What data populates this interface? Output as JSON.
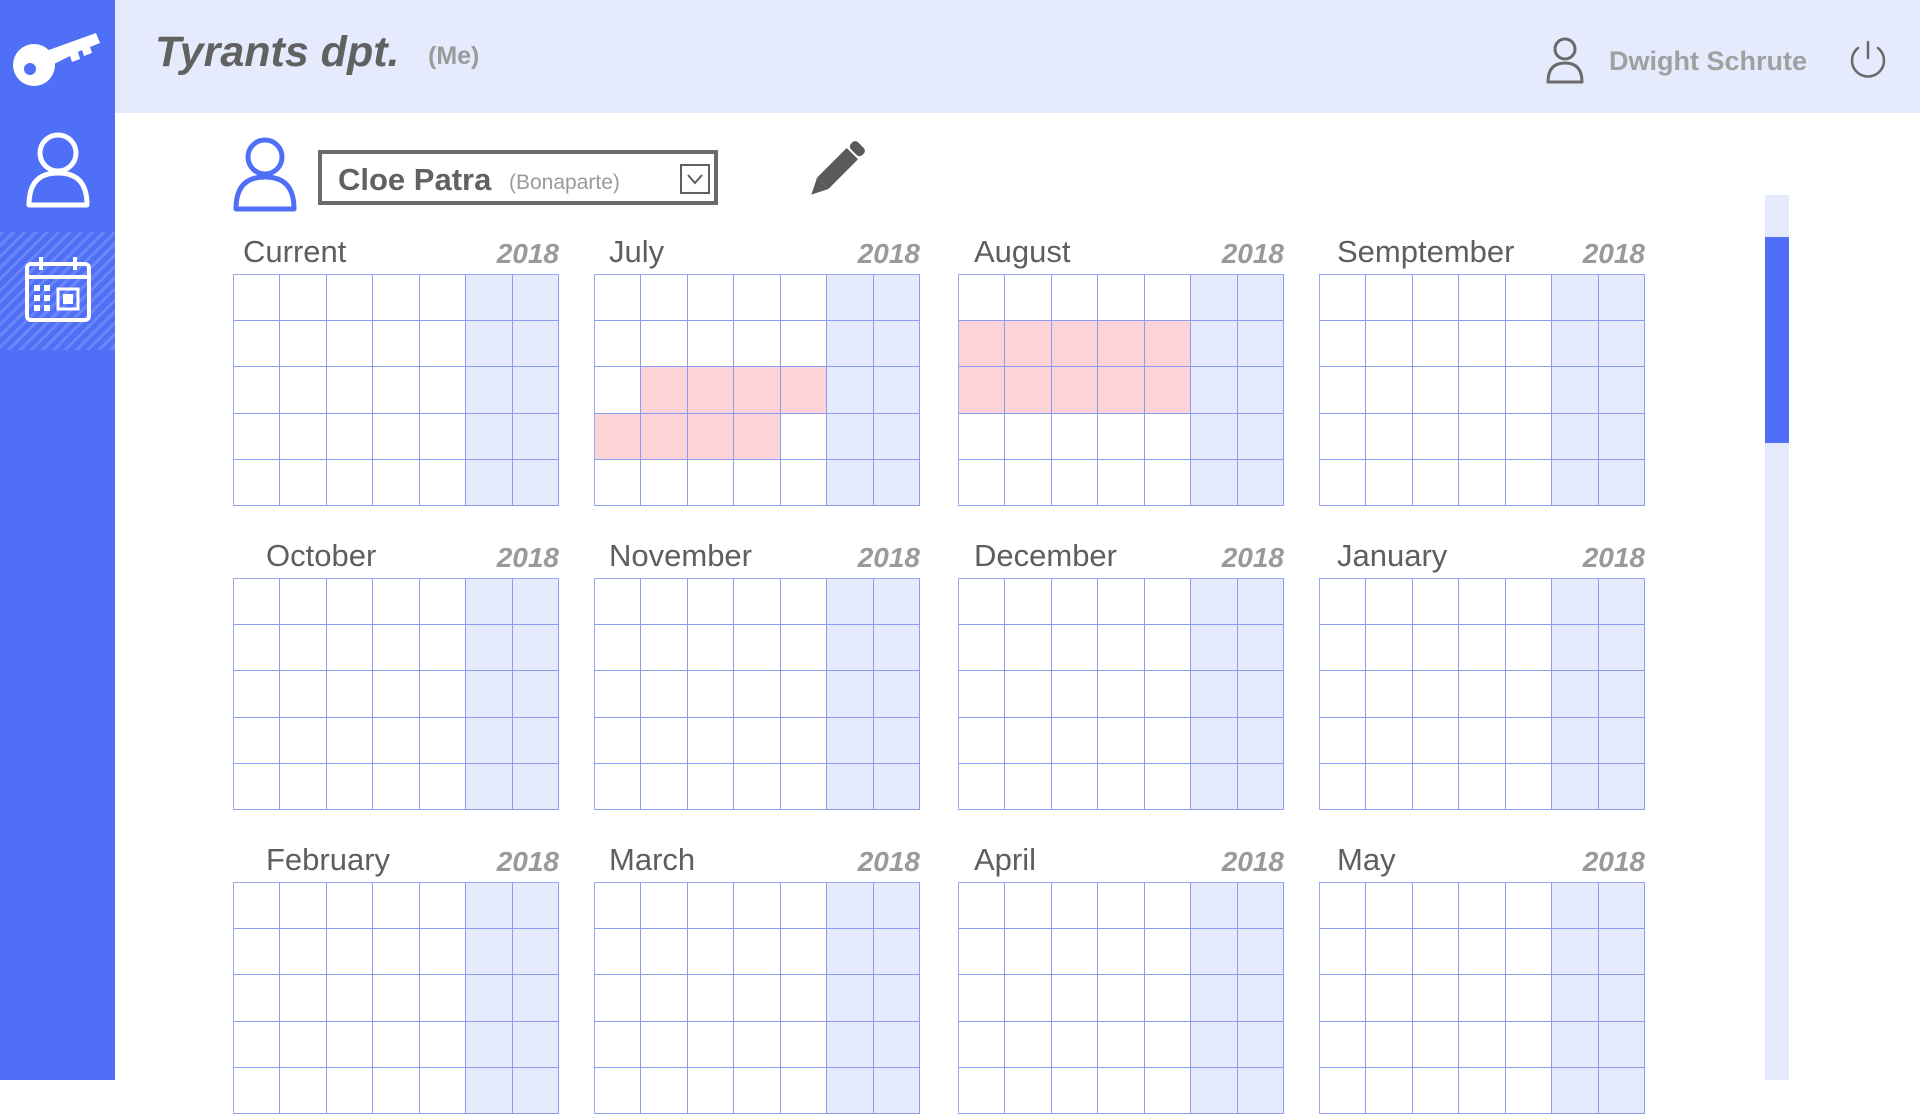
{
  "header": {
    "department": "Tyrants dpt.",
    "department_tag": "(Me)",
    "user_name": "Dwight Schrute"
  },
  "sidebar": {
    "items": [
      {
        "icon": "key-icon",
        "active": false
      },
      {
        "icon": "user-icon",
        "active": false
      },
      {
        "icon": "calendar-icon",
        "active": true
      }
    ]
  },
  "employee": {
    "name": "Cloe Patra",
    "subtitle": "(Bonaparte)"
  },
  "colors": {
    "accent": "#4f6ff7",
    "header_bg": "#e6eafd",
    "weekend_bg": "#e6eafd",
    "absence": "#fcd3d7"
  },
  "months": [
    {
      "name": "Current",
      "year": "2018",
      "off": []
    },
    {
      "name": "July",
      "year": "2018",
      "off": [
        [
          2,
          1
        ],
        [
          2,
          2
        ],
        [
          2,
          3
        ],
        [
          2,
          4
        ],
        [
          3,
          0
        ],
        [
          3,
          1
        ],
        [
          3,
          2
        ],
        [
          3,
          3
        ]
      ]
    },
    {
      "name": "August",
      "year": "2018",
      "off": [
        [
          1,
          0
        ],
        [
          1,
          1
        ],
        [
          1,
          2
        ],
        [
          1,
          3
        ],
        [
          1,
          4
        ],
        [
          2,
          0
        ],
        [
          2,
          1
        ],
        [
          2,
          2
        ],
        [
          2,
          3
        ],
        [
          2,
          4
        ]
      ]
    },
    {
      "name": "Semptember",
      "year": "2018",
      "off": []
    },
    {
      "name": "October",
      "year": "2018",
      "off": []
    },
    {
      "name": "November",
      "year": "2018",
      "off": []
    },
    {
      "name": "December",
      "year": "2018",
      "off": []
    },
    {
      "name": "January",
      "year": "2018",
      "off": []
    },
    {
      "name": "February",
      "year": "2018",
      "off": []
    },
    {
      "name": "March",
      "year": "2018",
      "off": []
    },
    {
      "name": "April",
      "year": "2018",
      "off": []
    },
    {
      "name": "May",
      "year": "2018",
      "off": []
    }
  ]
}
